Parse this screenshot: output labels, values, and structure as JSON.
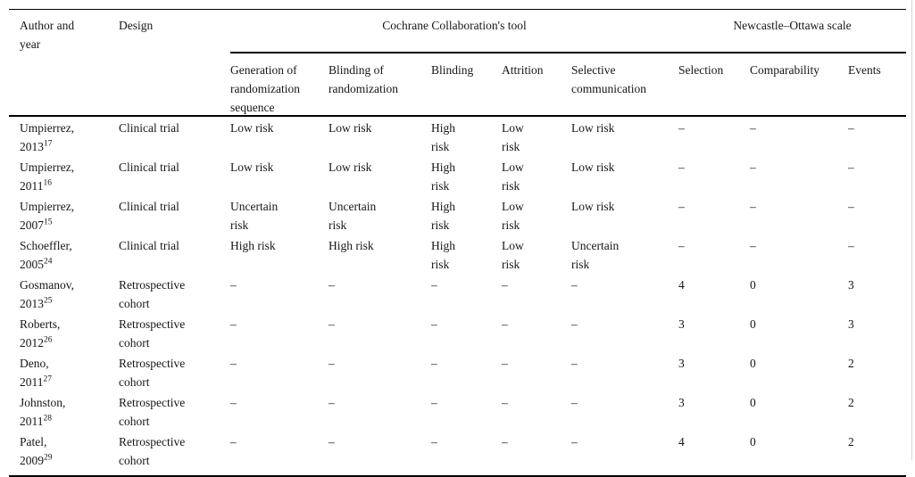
{
  "page": {
    "background": "#ffffff",
    "rule_color": "#000000"
  },
  "table": {
    "group_headers": {
      "author_year": "Author and\nyear",
      "design": "Design",
      "cochrane": "Cochrane Collaboration's tool",
      "newcastle": "Newcastle–Ottawa scale"
    },
    "sub_headers": {
      "generation": "Generation of\nrandomization\nsequence",
      "blinding_rand": "Blinding of\nrandomization",
      "blinding": "Blinding",
      "attrition": "Attrition",
      "selective": "Selective\ncommunication",
      "selection": "Selection",
      "comparability": "Comparability",
      "events": "Events"
    },
    "rows": [
      {
        "author": "Umpierrez,\n2013",
        "ref": "17",
        "design": "Clinical trial",
        "generation": "Low risk",
        "blinding_rand": "Low risk",
        "blinding": "High\nrisk",
        "attrition": "Low\nrisk",
        "selective": "Low risk",
        "selection": "–",
        "comparability": "–",
        "events": "–"
      },
      {
        "author": "Umpierrez,\n2011",
        "ref": "16",
        "design": "Clinical trial",
        "generation": "Low risk",
        "blinding_rand": "Low risk",
        "blinding": "High\nrisk",
        "attrition": "Low\nrisk",
        "selective": "Low risk",
        "selection": "–",
        "comparability": "–",
        "events": "–"
      },
      {
        "author": "Umpierrez,\n2007",
        "ref": "15",
        "design": "Clinical trial",
        "generation": "Uncertain\nrisk",
        "blinding_rand": "Uncertain\nrisk",
        "blinding": "High\nrisk",
        "attrition": "Low\nrisk",
        "selective": "Low risk",
        "selection": "–",
        "comparability": "–",
        "events": "–"
      },
      {
        "author": "Schoeffler,\n2005",
        "ref": "24",
        "design": "Clinical trial",
        "generation": "High risk",
        "blinding_rand": "High risk",
        "blinding": "High\nrisk",
        "attrition": "Low\nrisk",
        "selective": "Uncertain\nrisk",
        "selection": "–",
        "comparability": "–",
        "events": "–"
      },
      {
        "author": "Gosmanov,\n2013",
        "ref": "25",
        "design": "Retrospective\ncohort",
        "generation": "–",
        "blinding_rand": "–",
        "blinding": "–",
        "attrition": "–",
        "selective": "–",
        "selection": "4",
        "comparability": "0",
        "events": "3"
      },
      {
        "author": "Roberts,\n2012",
        "ref": "26",
        "design": "Retrospective\ncohort",
        "generation": "–",
        "blinding_rand": "–",
        "blinding": "–",
        "attrition": "–",
        "selective": "–",
        "selection": "3",
        "comparability": "0",
        "events": "3"
      },
      {
        "author": "Deno,\n2011",
        "ref": "27",
        "design": "Retrospective\ncohort",
        "generation": "–",
        "blinding_rand": "–",
        "blinding": "–",
        "attrition": "–",
        "selective": "–",
        "selection": "3",
        "comparability": "0",
        "events": "2"
      },
      {
        "author": "Johnston,\n2011",
        "ref": "28",
        "design": "Retrospective\ncohort",
        "generation": "–",
        "blinding_rand": "–",
        "blinding": "–",
        "attrition": "–",
        "selective": "–",
        "selection": "3",
        "comparability": "0",
        "events": "2"
      },
      {
        "author": "Patel,\n2009",
        "ref": "29",
        "design": "Retrospective\ncohort",
        "generation": "–",
        "blinding_rand": "–",
        "blinding": "–",
        "attrition": "–",
        "selective": "–",
        "selection": "4",
        "comparability": "0",
        "events": "2"
      }
    ]
  }
}
